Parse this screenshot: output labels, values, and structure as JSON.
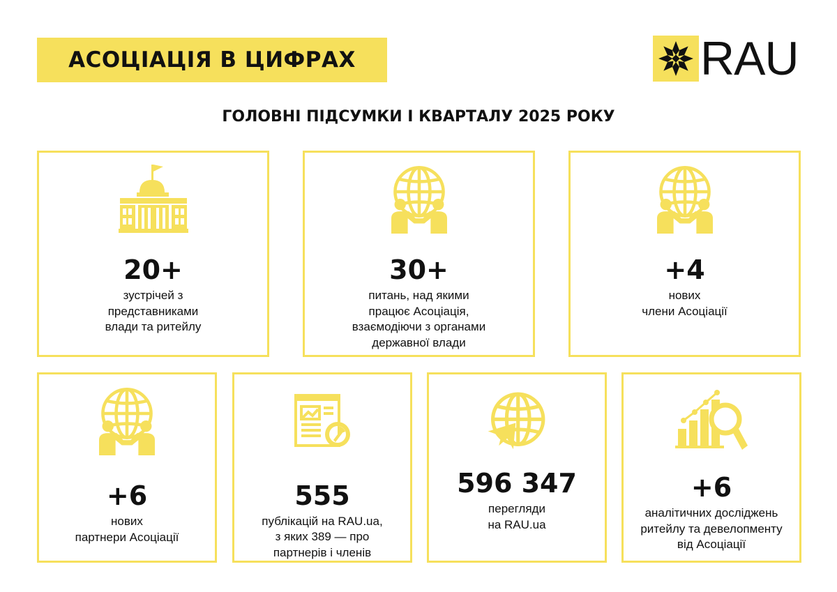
{
  "header": {
    "banner_title": "АСОЦІАЦІЯ В ЦИФРАХ",
    "logo_text": "RAU",
    "subtitle": "ГОЛОВНІ ПІДСУМКИ І КВАРТАЛУ 2025 РОКУ"
  },
  "colors": {
    "accent": "#f6e05c",
    "text": "#111111"
  },
  "cards": [
    {
      "icon": "government-building-icon",
      "value": "20+",
      "label": "зустрічей з\nпредставниками\nвлади та ритейлу"
    },
    {
      "icon": "globe-handshake-icon",
      "value": "30+",
      "label": "питань, над якими\nпрацює Асоціація,\nвзаємодіючи з органами\nдержавної влади"
    },
    {
      "icon": "globe-handshake-icon",
      "value": "+4",
      "label": "нових\nчлени Асоціації"
    },
    {
      "icon": "globe-handshake-icon",
      "value": "+6",
      "label": "нових\nпартнери Асоціації"
    },
    {
      "icon": "publication-icon",
      "value": "555",
      "label": "публікацій на RAU.ua,\nз яких 389 — про\nпартнерів і членів"
    },
    {
      "icon": "globe-views-icon",
      "value": "596 347",
      "label": "перегляди\nна RAU.ua"
    },
    {
      "icon": "analytics-chart-icon",
      "value": "+6",
      "label": "аналітичних досліджень\nритейлу та девелопменту\nвід Асоціації"
    }
  ]
}
